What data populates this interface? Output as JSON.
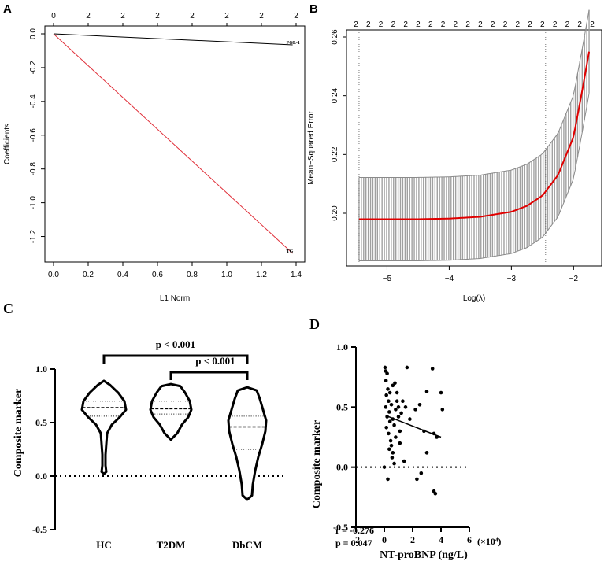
{
  "chart_data": [
    {
      "panel": "A",
      "type": "line",
      "xlabel": "L1 Norm",
      "ylabel": "Coefficients",
      "xlim": [
        0.0,
        1.4
      ],
      "ylim": [
        -1.3,
        0.0
      ],
      "xticks": [
        "0.0",
        "0.2",
        "0.4",
        "0.6",
        "0.8",
        "1.0",
        "1.2",
        "1.4"
      ],
      "yticks": [
        "0.0",
        "-0.2",
        "-0.4",
        "-0.6",
        "-0.8",
        "-1.0",
        "-1.2"
      ],
      "top_ticks": [
        "0",
        "2",
        "2",
        "2",
        "2",
        "2",
        "2",
        "2"
      ],
      "series": [
        {
          "name": "FGL-1",
          "color": "#000000",
          "x": [
            0.0,
            1.38
          ],
          "y": [
            0.0,
            -0.065
          ]
        },
        {
          "name": "TG",
          "color": "#e0303a",
          "x": [
            0.0,
            1.38
          ],
          "y": [
            0.0,
            -1.3
          ]
        }
      ]
    },
    {
      "panel": "B",
      "type": "line",
      "xlabel": "Log(λ)",
      "ylabel": "Mean−Squared Error",
      "xlim": [
        -5.5,
        -1.7
      ],
      "ylim": [
        0.185,
        0.26
      ],
      "xticks": [
        "−5",
        "−4",
        "−3",
        "−2"
      ],
      "yticks": [
        "0.20",
        "0.22",
        "0.24",
        "0.26"
      ],
      "top_ticks": [
        "2",
        "2",
        "2",
        "2",
        "2",
        "2",
        "2",
        "2",
        "2",
        "2",
        "2",
        "2",
        "2",
        "2",
        "2",
        "2",
        "2",
        "2",
        "2",
        "2"
      ],
      "vlines": [
        -5.45,
        -2.45
      ],
      "curve_color": "#e00000",
      "band_color": "#a0a0a0",
      "series": [
        {
          "name": "MSE",
          "x": [
            -5.45,
            -5.0,
            -4.5,
            -4.0,
            -3.5,
            -3.0,
            -2.75,
            -2.5,
            -2.25,
            -2.0,
            -1.85,
            -1.75
          ],
          "y": [
            0.198,
            0.198,
            0.198,
            0.1982,
            0.1988,
            0.2005,
            0.2025,
            0.206,
            0.213,
            0.226,
            0.243,
            0.255
          ],
          "sd": [
            0.0142,
            0.0142,
            0.0142,
            0.0142,
            0.0142,
            0.0142,
            0.0142,
            0.0142,
            0.0142,
            0.0142,
            0.0142,
            0.0142
          ]
        }
      ]
    },
    {
      "panel": "C",
      "type": "violin",
      "ylabel": "Composite marker",
      "ylim": [
        -0.5,
        1.0
      ],
      "yticks": [
        "1.0",
        "0.5",
        "0.0",
        "-0.5"
      ],
      "categories": [
        "HC",
        "T2DM",
        "DbCM"
      ],
      "groups": [
        {
          "name": "HC",
          "min": 0.02,
          "q1": 0.56,
          "median": 0.64,
          "q3": 0.7,
          "max": 0.89
        },
        {
          "name": "T2DM",
          "min": 0.34,
          "q1": 0.58,
          "median": 0.63,
          "q3": 0.7,
          "max": 0.86
        },
        {
          "name": "DbCM",
          "min": -0.22,
          "q1": 0.25,
          "median": 0.46,
          "q3": 0.56,
          "max": 0.83
        }
      ],
      "annotations": [
        {
          "from": "HC",
          "to": "DbCM",
          "label": "p < 0.001"
        },
        {
          "from": "T2DM",
          "to": "DbCM",
          "label": "p < 0.001"
        }
      ]
    },
    {
      "panel": "D",
      "type": "scatter",
      "xlabel": "NT-proBNP (ng/L)",
      "ylabel": "Composite marker",
      "x_scale_label": "(×10⁴)",
      "xlim": [
        -2,
        6
      ],
      "ylim": [
        -0.5,
        1.0
      ],
      "xticks": [
        "-2",
        "0",
        "2",
        "4",
        "6"
      ],
      "yticks": [
        "1.0",
        "0.5",
        "0.0",
        "-0.5"
      ],
      "stats": [
        "r = -0.276",
        "p = 0.047"
      ],
      "fit": {
        "x": [
          0.1,
          4.0
        ],
        "y": [
          0.43,
          0.25
        ]
      },
      "points": [
        [
          0.05,
          0.83
        ],
        [
          0.1,
          0.8
        ],
        [
          0.12,
          0.72
        ],
        [
          0.2,
          0.78
        ],
        [
          0.25,
          0.65
        ],
        [
          0.15,
          0.6
        ],
        [
          0.3,
          0.55
        ],
        [
          0.1,
          0.5
        ],
        [
          0.35,
          0.46
        ],
        [
          0.2,
          0.42
        ],
        [
          0.4,
          0.38
        ],
        [
          0.15,
          0.33
        ],
        [
          0.3,
          0.28
        ],
        [
          0.45,
          0.22
        ],
        [
          0.5,
          0.18
        ],
        [
          0.6,
          0.12
        ],
        [
          0.55,
          0.08
        ],
        [
          0.7,
          0.03
        ],
        [
          0.25,
          -0.1
        ],
        [
          0.5,
          0.52
        ],
        [
          0.8,
          0.48
        ],
        [
          0.9,
          0.55
        ],
        [
          1.0,
          0.5
        ],
        [
          1.2,
          0.45
        ],
        [
          0.6,
          0.4
        ],
        [
          0.7,
          0.35
        ],
        [
          1.1,
          0.3
        ],
        [
          0.8,
          0.25
        ],
        [
          0.4,
          0.62
        ],
        [
          0.6,
          0.68
        ],
        [
          0.9,
          0.62
        ],
        [
          1.3,
          0.55
        ],
        [
          1.5,
          0.5
        ],
        [
          1.6,
          0.83
        ],
        [
          1.0,
          0.42
        ],
        [
          0.35,
          0.15
        ],
        [
          0.75,
          0.7
        ],
        [
          1.8,
          0.4
        ],
        [
          2.2,
          0.48
        ],
        [
          2.5,
          0.52
        ],
        [
          2.8,
          0.3
        ],
        [
          3.0,
          0.12
        ],
        [
          2.6,
          -0.05
        ],
        [
          2.3,
          -0.1
        ],
        [
          3.0,
          0.63
        ],
        [
          3.4,
          0.82
        ],
        [
          3.5,
          0.28
        ],
        [
          3.7,
          0.25
        ],
        [
          3.5,
          -0.2
        ],
        [
          3.6,
          -0.22
        ],
        [
          4.0,
          0.62
        ],
        [
          4.1,
          0.48
        ],
        [
          1.4,
          0.05
        ],
        [
          1.1,
          0.2
        ],
        [
          0.0,
          0.0
        ]
      ]
    }
  ],
  "panel_labels": [
    "A",
    "B",
    "C",
    "D"
  ]
}
